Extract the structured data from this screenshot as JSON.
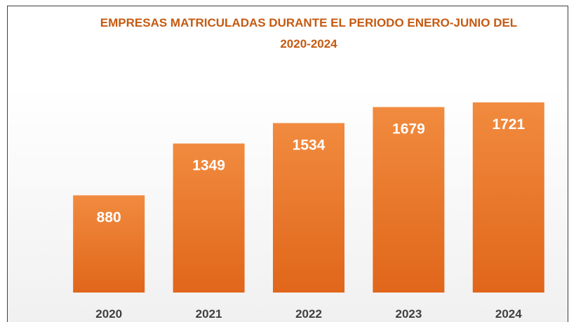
{
  "chart_data": {
    "type": "bar",
    "title": "EMPRESAS MATRICULADAS DURANTE EL PERIODO ENERO-JUNIO DEL 2020-2024",
    "categories": [
      "2020",
      "2021",
      "2022",
      "2023",
      "2024"
    ],
    "values": [
      880,
      1349,
      1534,
      1679,
      1721
    ],
    "color": "#ed7d31"
  }
}
